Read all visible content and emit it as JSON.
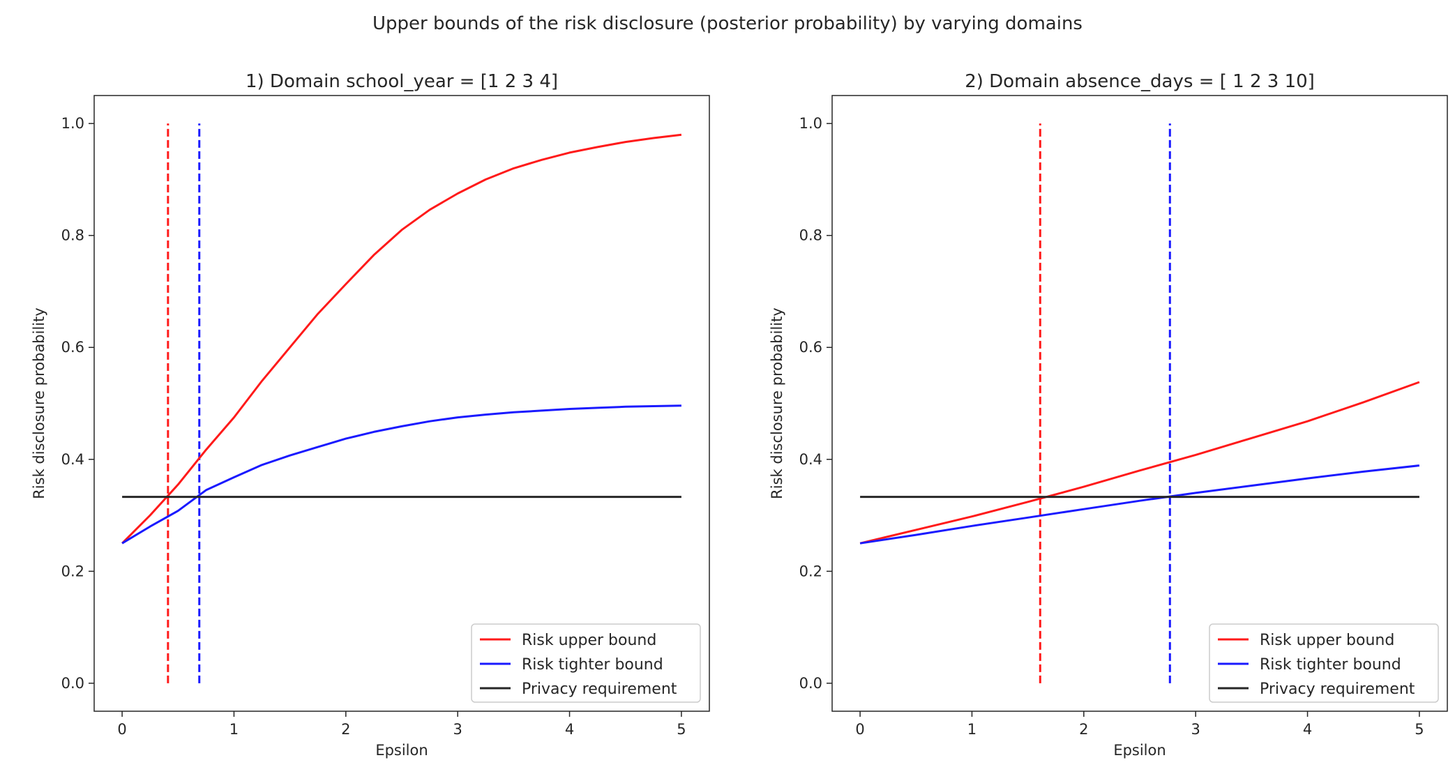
{
  "suptitle": "Upper bounds of the risk disclosure (posterior probability) by varying domains",
  "colors": {
    "upper": "#ff1a1a",
    "tighter": "#1a1aff",
    "privacy": "#262626",
    "axis": "#262626"
  },
  "chart_data": [
    {
      "type": "line",
      "title": "1) Domain school_year = [1 2 3 4]",
      "xlabel": "Epsilon",
      "ylabel": "Risk disclosure probability",
      "xlim": [
        -0.25,
        5.25
      ],
      "ylim": [
        -0.05,
        1.05
      ],
      "xticks": [
        0,
        1,
        2,
        3,
        4,
        5
      ],
      "yticks": [
        0.0,
        0.2,
        0.4,
        0.6,
        0.8,
        1.0
      ],
      "ytick_labels": [
        "0.0",
        "0.2",
        "0.4",
        "0.6",
        "0.8",
        "1.0"
      ],
      "legend_position": "lower-right",
      "series": [
        {
          "name": "Risk upper bound",
          "color_key": "upper",
          "style": "solid",
          "x": [
            0,
            0.25,
            0.5,
            0.75,
            1.0,
            1.25,
            1.5,
            1.75,
            2.0,
            2.25,
            2.5,
            2.75,
            3.0,
            3.25,
            3.5,
            3.75,
            4.0,
            4.25,
            4.5,
            4.75,
            5.0
          ],
          "y": [
            0.25,
            0.3,
            0.355,
            0.417,
            0.475,
            0.54,
            0.6,
            0.66,
            0.713,
            0.765,
            0.81,
            0.846,
            0.875,
            0.9,
            0.92,
            0.935,
            0.948,
            0.958,
            0.967,
            0.974,
            0.98
          ]
        },
        {
          "name": "Risk tighter bound",
          "color_key": "tighter",
          "style": "solid",
          "x": [
            0,
            0.25,
            0.5,
            0.75,
            1.0,
            1.25,
            1.5,
            1.75,
            2.0,
            2.25,
            2.5,
            2.75,
            3.0,
            3.25,
            3.5,
            3.75,
            4.0,
            4.25,
            4.5,
            4.75,
            5.0
          ],
          "y": [
            0.25,
            0.28,
            0.308,
            0.345,
            0.368,
            0.39,
            0.407,
            0.422,
            0.437,
            0.449,
            0.459,
            0.468,
            0.475,
            0.48,
            0.484,
            0.487,
            0.49,
            0.492,
            0.494,
            0.495,
            0.496
          ]
        },
        {
          "name": "Privacy requirement",
          "color_key": "privacy",
          "style": "solid",
          "x": [
            0,
            5
          ],
          "y": [
            0.333,
            0.333
          ]
        }
      ],
      "vlines": [
        {
          "x": 0.41,
          "y0": 0.0,
          "y1": 1.0,
          "color_key": "upper",
          "style": "dashed"
        },
        {
          "x": 0.69,
          "y0": 0.0,
          "y1": 1.0,
          "color_key": "tighter",
          "style": "dashed"
        }
      ]
    },
    {
      "type": "line",
      "title": "2) Domain absence_days = [ 1  2  3 10]",
      "xlabel": "Epsilon",
      "ylabel": "Risk disclosure probability",
      "xlim": [
        -0.25,
        5.25
      ],
      "ylim": [
        -0.05,
        1.05
      ],
      "xticks": [
        0,
        1,
        2,
        3,
        4,
        5
      ],
      "yticks": [
        0.0,
        0.2,
        0.4,
        0.6,
        0.8,
        1.0
      ],
      "ytick_labels": [
        "0.0",
        "0.2",
        "0.4",
        "0.6",
        "0.8",
        "1.0"
      ],
      "legend_position": "lower-right",
      "series": [
        {
          "name": "Risk upper bound",
          "color_key": "upper",
          "style": "solid",
          "x": [
            0,
            0.5,
            1.0,
            1.5,
            2.0,
            2.5,
            3.0,
            3.5,
            4.0,
            4.5,
            5.0
          ],
          "y": [
            0.25,
            0.274,
            0.298,
            0.324,
            0.351,
            0.38,
            0.408,
            0.438,
            0.468,
            0.502,
            0.538
          ]
        },
        {
          "name": "Risk tighter bound",
          "color_key": "tighter",
          "style": "solid",
          "x": [
            0,
            0.5,
            1.0,
            1.5,
            2.0,
            2.5,
            3.0,
            3.5,
            4.0,
            4.5,
            5.0
          ],
          "y": [
            0.25,
            0.265,
            0.281,
            0.296,
            0.311,
            0.326,
            0.34,
            0.353,
            0.366,
            0.378,
            0.389
          ]
        },
        {
          "name": "Privacy requirement",
          "color_key": "privacy",
          "style": "solid",
          "x": [
            0,
            5
          ],
          "y": [
            0.333,
            0.333
          ]
        }
      ],
      "vlines": [
        {
          "x": 1.61,
          "y0": 0.0,
          "y1": 1.0,
          "color_key": "upper",
          "style": "dashed"
        },
        {
          "x": 2.77,
          "y0": 0.0,
          "y1": 1.0,
          "color_key": "tighter",
          "style": "dashed"
        }
      ]
    }
  ]
}
